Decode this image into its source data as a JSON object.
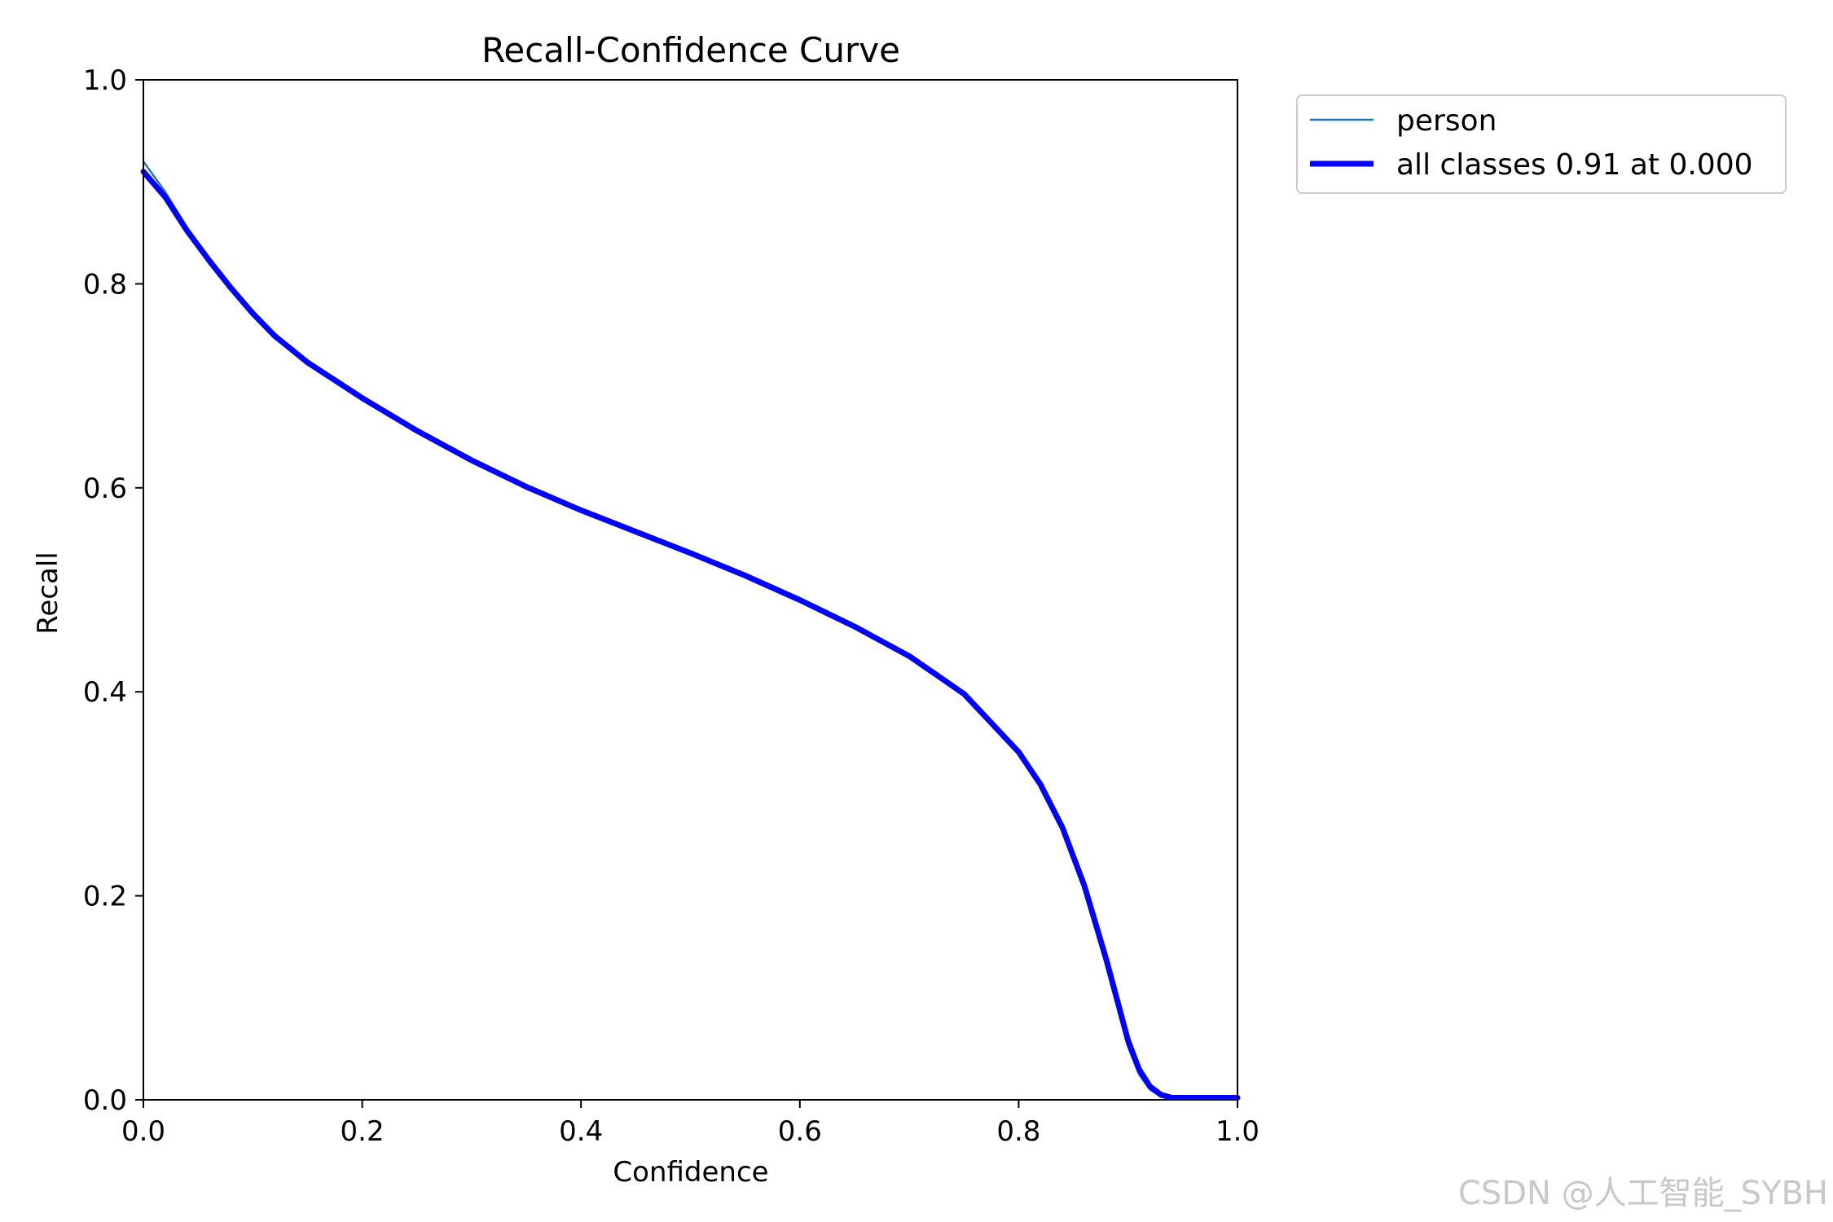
{
  "chart_data": {
    "type": "line",
    "title": "Recall-Confidence Curve",
    "xlabel": "Confidence",
    "ylabel": "Recall",
    "xlim": [
      0,
      1
    ],
    "ylim": [
      0,
      1
    ],
    "xticks": [
      "0.0",
      "0.2",
      "0.4",
      "0.6",
      "0.8",
      "1.0"
    ],
    "yticks": [
      "0.0",
      "0.2",
      "0.4",
      "0.6",
      "0.8",
      "1.0"
    ],
    "grid": false,
    "legend_position": "outside-top-right",
    "series": [
      {
        "name": "person",
        "color": "#1f77b4",
        "width": "thin",
        "x": [
          0.0,
          0.02,
          0.04,
          0.06,
          0.08,
          0.1,
          0.12,
          0.15,
          0.2,
          0.25,
          0.3,
          0.35,
          0.4,
          0.45,
          0.5,
          0.55,
          0.6,
          0.65,
          0.7,
          0.75,
          0.8,
          0.82,
          0.84,
          0.86,
          0.88,
          0.9,
          0.91,
          0.92,
          0.93,
          0.94,
          0.95,
          0.97,
          1.0
        ],
        "y": [
          0.92,
          0.89,
          0.855,
          0.825,
          0.797,
          0.772,
          0.75,
          0.724,
          0.689,
          0.657,
          0.628,
          0.602,
          0.579,
          0.558,
          0.537,
          0.515,
          0.491,
          0.465,
          0.436,
          0.399,
          0.342,
          0.31,
          0.268,
          0.21,
          0.135,
          0.052,
          0.025,
          0.01,
          0.003,
          0.001,
          0.001,
          0.001,
          0.001
        ]
      },
      {
        "name": "all classes 0.91 at 0.000",
        "color": "#0000ff",
        "width": "thick",
        "x": [
          0.0,
          0.02,
          0.04,
          0.06,
          0.08,
          0.1,
          0.12,
          0.15,
          0.2,
          0.25,
          0.3,
          0.35,
          0.4,
          0.45,
          0.5,
          0.55,
          0.6,
          0.65,
          0.7,
          0.75,
          0.8,
          0.82,
          0.84,
          0.86,
          0.88,
          0.9,
          0.91,
          0.92,
          0.93,
          0.94,
          0.95,
          0.97,
          1.0
        ],
        "y": [
          0.91,
          0.885,
          0.852,
          0.823,
          0.796,
          0.771,
          0.749,
          0.723,
          0.688,
          0.656,
          0.627,
          0.601,
          0.578,
          0.557,
          0.536,
          0.514,
          0.49,
          0.464,
          0.435,
          0.398,
          0.341,
          0.309,
          0.267,
          0.21,
          0.138,
          0.058,
          0.03,
          0.013,
          0.005,
          0.002,
          0.002,
          0.002,
          0.002
        ]
      }
    ]
  },
  "watermark": "CSDN @人工智能_SYBH"
}
